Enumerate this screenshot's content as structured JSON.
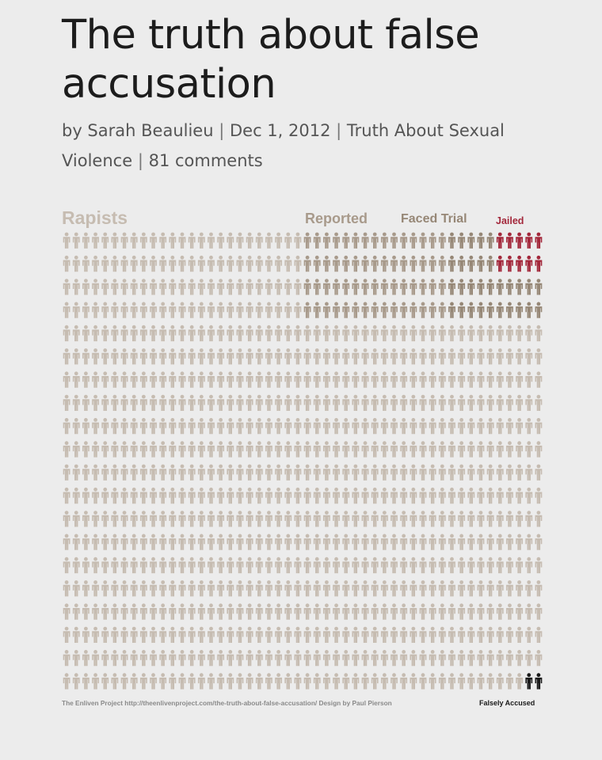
{
  "article": {
    "title": "The truth about false accusation",
    "author": "by Sarah Beaulieu",
    "date": "Dec 1, 2012",
    "category": "Truth About Sexual Violence",
    "comments": "81 comments"
  },
  "chart_data": {
    "type": "pictogram",
    "title": "Rapists",
    "total_icons": 1000,
    "grid": {
      "rows": 20,
      "cols": 50
    },
    "categories": [
      {
        "name": "Rapists",
        "count": 1000,
        "color": "#c6bcb1"
      },
      {
        "name": "Reported",
        "count": 100,
        "color": "#a89a8b"
      },
      {
        "name": "Faced Trial",
        "count": 40,
        "color": "#968776"
      },
      {
        "name": "Jailed",
        "count": 10,
        "color": "#a3283b"
      },
      {
        "name": "Falsely Accused",
        "count": 2,
        "color": "#1a1a1a"
      }
    ],
    "credit": "The Enliven Project http://theenlivenproject.com/the-truth-about-false-accusation/ Design by Paul Pierson"
  }
}
